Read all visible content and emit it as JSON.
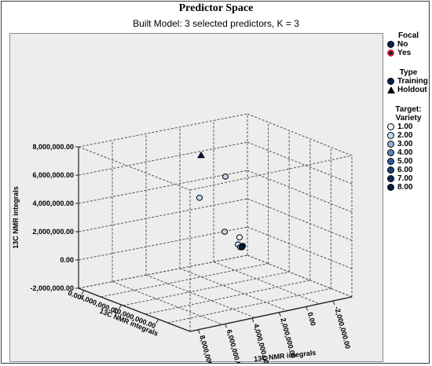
{
  "chart_data": {
    "type": "scatter",
    "title": "Predictor Space",
    "subtitle": "Built Model: 3 selected predictors, K = 3",
    "axes": {
      "vertical": {
        "label": "13C NMR integrals",
        "ticks": [
          "-2,000,000.00",
          "0.00",
          "2,000,000.00",
          "4,000,000.00",
          "6,000,000.00",
          "8,000,000.00"
        ],
        "range": [
          -2000000,
          8000000
        ]
      },
      "left_depth": {
        "label": "13C NMR integrals",
        "ticks": [
          "0.00",
          "4,000,000.00",
          "10,000,000.00"
        ]
      },
      "right_depth": {
        "label": "13C NMR integrals",
        "ticks": [
          "-2,000,000.00",
          "0.00",
          "2,000,000.00",
          "4,000,000.00",
          "6,000,000.00",
          "8,000,000.00"
        ]
      }
    },
    "grid": true,
    "points": [
      {
        "vertical": 7400000,
        "type": "Holdout",
        "target": "8.00",
        "focal": "No"
      },
      {
        "vertical": 5900000,
        "type": "Training",
        "target": "2.00",
        "focal": "No"
      },
      {
        "vertical": 4400000,
        "type": "Training",
        "target": "2.00",
        "focal": "No"
      },
      {
        "vertical": 2000000,
        "type": "Training",
        "target": "2.00",
        "focal": "No"
      },
      {
        "vertical": 1600000,
        "type": "Training",
        "target": "1.00",
        "focal": "No"
      },
      {
        "vertical": 1100000,
        "type": "Training",
        "target": "2.00",
        "focal": "No"
      },
      {
        "vertical": 900000,
        "type": "Training",
        "target": "3.00",
        "focal": "No"
      },
      {
        "vertical": 1000000,
        "type": "Training",
        "target": "8.00",
        "focal": "No"
      },
      {
        "vertical": 900000,
        "type": "Training",
        "target": "8.00",
        "focal": "No"
      }
    ],
    "legend": {
      "position": "right",
      "focal": {
        "title": "Focal",
        "items": [
          {
            "label": "No",
            "color": "#0a1f4f",
            "ring": "#000000"
          },
          {
            "label": "Yes",
            "color": "#0a1f4f",
            "ring": "#e0262a"
          }
        ]
      },
      "type": {
        "title": "Type",
        "items": [
          {
            "label": "Training",
            "symbol": "circle"
          },
          {
            "label": "Holdout",
            "symbol": "triangle"
          }
        ]
      },
      "target": {
        "title_lines": [
          "Target:",
          "Variety"
        ],
        "items": [
          {
            "label": "1.00",
            "color": "#eef5fb"
          },
          {
            "label": "2.00",
            "color": "#c3d8ec"
          },
          {
            "label": "3.00",
            "color": "#8eb1d6"
          },
          {
            "label": "4.00",
            "color": "#5a86bd"
          },
          {
            "label": "5.00",
            "color": "#2e5d9e"
          },
          {
            "label": "6.00",
            "color": "#18407c"
          },
          {
            "label": "7.00",
            "color": "#0d2b5e"
          },
          {
            "label": "8.00",
            "color": "#061a44"
          }
        ]
      }
    }
  }
}
